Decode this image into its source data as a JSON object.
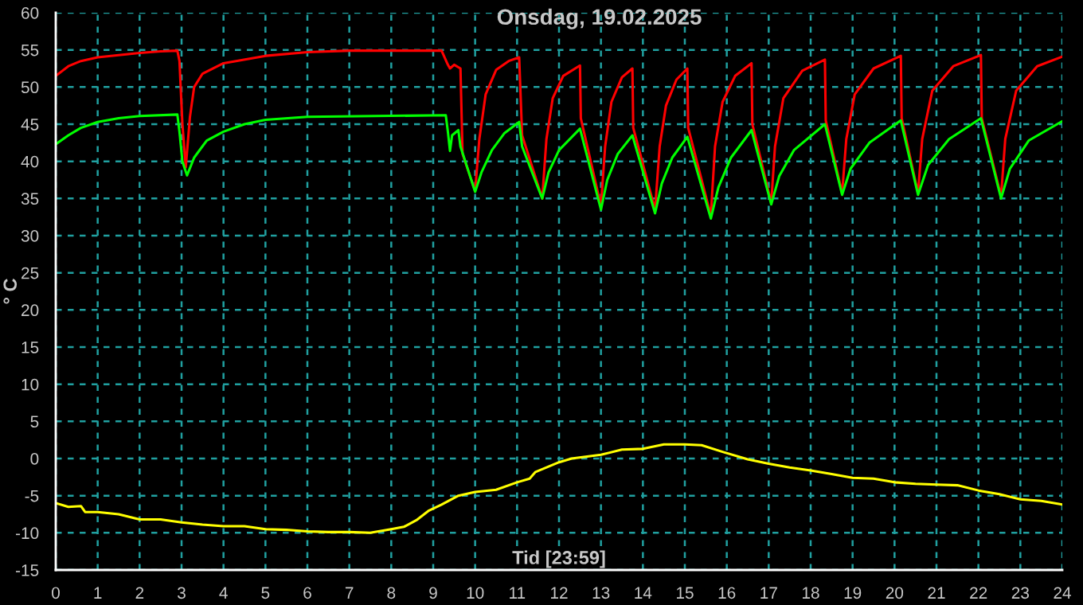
{
  "chart_data": {
    "type": "line",
    "title": "Onsdag, 19.02.2025",
    "xlabel": "Tid [23:59]",
    "ylabel": "° C",
    "xlim": [
      0,
      24
    ],
    "xticks": [
      0,
      1,
      2,
      3,
      4,
      5,
      6,
      7,
      8,
      9,
      10,
      11,
      12,
      13,
      14,
      15,
      16,
      17,
      18,
      19,
      20,
      21,
      22,
      23,
      24
    ],
    "ylim": [
      -15,
      60
    ],
    "yticks": [
      -15,
      -10,
      -5,
      0,
      5,
      10,
      15,
      20,
      25,
      30,
      35,
      40,
      45,
      50,
      55,
      60
    ],
    "grid": true,
    "marker": "none",
    "line_style": "solid",
    "series": [
      {
        "color": "#ff0000",
        "x": [
          0,
          0.3,
          0.6,
          1.0,
          1.5,
          2.0,
          2.5,
          2.9,
          2.95,
          3.02,
          3.1,
          3.2,
          3.3,
          3.5,
          4.0,
          5.0,
          6.0,
          7.0,
          9.2,
          9.35,
          9.4,
          9.5,
          9.65,
          9.7,
          10.0,
          10.1,
          10.25,
          10.5,
          10.8,
          11.05,
          11.12,
          11.6,
          11.7,
          11.85,
          12.1,
          12.5,
          12.52,
          13.0,
          13.1,
          13.25,
          13.5,
          13.75,
          13.77,
          14.29,
          14.4,
          14.55,
          14.8,
          15.06,
          15.08,
          15.62,
          15.72,
          15.9,
          16.2,
          16.59,
          16.61,
          17.06,
          17.15,
          17.35,
          17.8,
          18.34,
          18.36,
          18.75,
          18.85,
          19.05,
          19.5,
          20.15,
          20.17,
          20.56,
          20.66,
          20.9,
          21.4,
          22.06,
          22.08,
          22.54,
          22.64,
          22.9,
          23.4,
          24.0
        ],
        "values": [
          51.5,
          52.8,
          53.5,
          54.0,
          54.3,
          54.6,
          54.8,
          54.9,
          53.5,
          45,
          39.2,
          46,
          50,
          51.8,
          53.2,
          54.2,
          54.7,
          54.9,
          54.9,
          53.0,
          52.5,
          53.0,
          52.5,
          41,
          36.0,
          43,
          49,
          52.3,
          53.5,
          54.0,
          43.5,
          35.0,
          43,
          48.5,
          51.5,
          52.9,
          45.8,
          34.0,
          42,
          48,
          51.3,
          52.5,
          44.5,
          33.5,
          42,
          47.5,
          51,
          52.5,
          44.5,
          32.7,
          42,
          48,
          51.5,
          53.2,
          45,
          34.4,
          42,
          48.5,
          52.2,
          53.7,
          45.5,
          35.7,
          43,
          49,
          52.5,
          54.2,
          45.8,
          35.7,
          43,
          49.5,
          52.8,
          54.3,
          45.8,
          35.3,
          43,
          49.5,
          52.8,
          54.1
        ]
      },
      {
        "color": "#00ff00",
        "x": [
          0,
          0.3,
          0.6,
          1.0,
          1.5,
          2.0,
          2.9,
          2.95,
          3.02,
          3.13,
          3.3,
          3.6,
          4.0,
          4.5,
          5.0,
          6.0,
          9.3,
          9.35,
          9.4,
          9.45,
          9.6,
          9.65,
          10.0,
          10.15,
          10.4,
          10.7,
          11.05,
          11.12,
          11.6,
          11.75,
          12.0,
          12.5,
          13.0,
          13.15,
          13.4,
          13.75,
          14.29,
          14.45,
          14.7,
          15.06,
          15.62,
          15.8,
          16.1,
          16.59,
          17.06,
          17.25,
          17.6,
          18.34,
          18.75,
          18.95,
          19.4,
          20.15,
          20.56,
          20.8,
          21.3,
          22.06,
          22.54,
          22.75,
          23.2,
          24.0
        ],
        "values": [
          42.3,
          43.5,
          44.5,
          45.3,
          45.8,
          46.1,
          46.3,
          44,
          40,
          38.1,
          40.5,
          42.8,
          44.0,
          45.0,
          45.6,
          46.0,
          46.2,
          44,
          41.4,
          43.5,
          44.2,
          42,
          35.9,
          38.5,
          41.5,
          43.8,
          45.3,
          42,
          35.0,
          38.5,
          41.5,
          44.4,
          33.5,
          37.5,
          41,
          43.5,
          33.0,
          37,
          40.5,
          43.3,
          32.3,
          36.5,
          40.5,
          44.2,
          34.2,
          38,
          41.5,
          45.0,
          35.5,
          39,
          42.5,
          45.5,
          35.5,
          39.5,
          43,
          45.8,
          35.0,
          39,
          42.8,
          45.4
        ]
      },
      {
        "color": "#ffff00",
        "x": [
          0,
          0.3,
          0.6,
          0.7,
          1.0,
          1.5,
          2.0,
          2.5,
          3.0,
          3.5,
          4.0,
          4.5,
          5.0,
          5.5,
          6.0,
          6.5,
          7.0,
          7.5,
          8.0,
          8.3,
          8.6,
          8.9,
          9.2,
          9.6,
          10.0,
          10.5,
          11.0,
          11.3,
          11.44,
          12.0,
          12.3,
          13.0,
          13.5,
          14.0,
          14.5,
          15.0,
          15.4,
          15.9,
          16.5,
          17.0,
          17.5,
          18.0,
          18.5,
          19.0,
          19.5,
          20.0,
          20.5,
          21.0,
          21.5,
          22.0,
          22.5,
          23.0,
          23.5,
          24.0
        ],
        "values": [
          -6.0,
          -6.5,
          -6.4,
          -7.2,
          -7.2,
          -7.5,
          -8.2,
          -8.2,
          -8.6,
          -8.9,
          -9.1,
          -9.1,
          -9.5,
          -9.6,
          -9.8,
          -9.9,
          -9.9,
          -10.0,
          -9.5,
          -9.2,
          -8.3,
          -7.0,
          -6.2,
          -5.0,
          -4.5,
          -4.2,
          -3.2,
          -2.7,
          -1.8,
          -0.5,
          0,
          0.5,
          1.2,
          1.3,
          1.9,
          1.9,
          1.8,
          0.9,
          -0.1,
          -0.7,
          -1.2,
          -1.6,
          -2.1,
          -2.6,
          -2.7,
          -3.2,
          -3.4,
          -3.5,
          -3.6,
          -4.3,
          -4.8,
          -5.5,
          -5.7,
          -6.2
        ]
      }
    ]
  }
}
